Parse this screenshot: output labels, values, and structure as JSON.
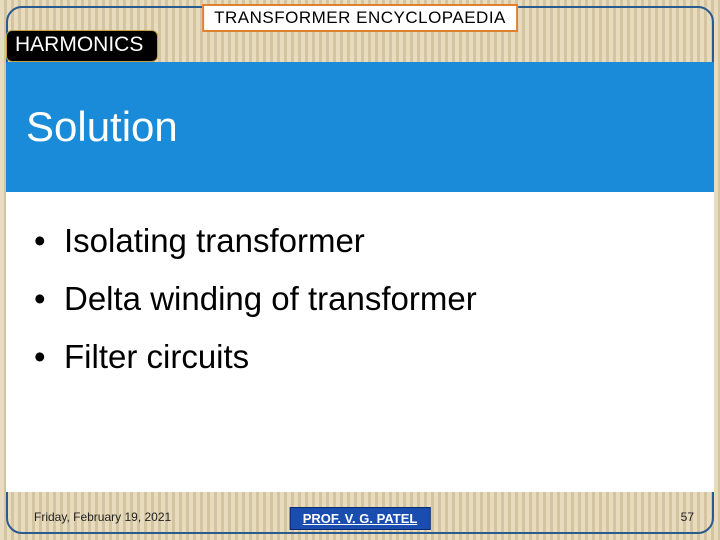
{
  "header": {
    "title": "TRANSFORMER ENCYCLOPAEDIA",
    "subtitle": "HARMONICS"
  },
  "banner": {
    "text": "Solution",
    "bg_color": "#1a8bd8",
    "text_color": "#ffffff",
    "fontsize": 42
  },
  "bullets": [
    "Isolating transformer",
    "Delta winding of transformer",
    "Filter circuits"
  ],
  "footer": {
    "date": "Friday, February 19, 2021",
    "author": "PROF. V. G. PATEL",
    "page": "57"
  },
  "styling": {
    "slide_width": 720,
    "slide_height": 540,
    "frame_border_color": "#2a5b8f",
    "title_border_color": "#e08030",
    "background_stripe_light": "#e8dcc0",
    "background_stripe_dark": "#d4c5a0",
    "bullet_fontsize": 33,
    "author_bg_color": "#1a4db0"
  }
}
